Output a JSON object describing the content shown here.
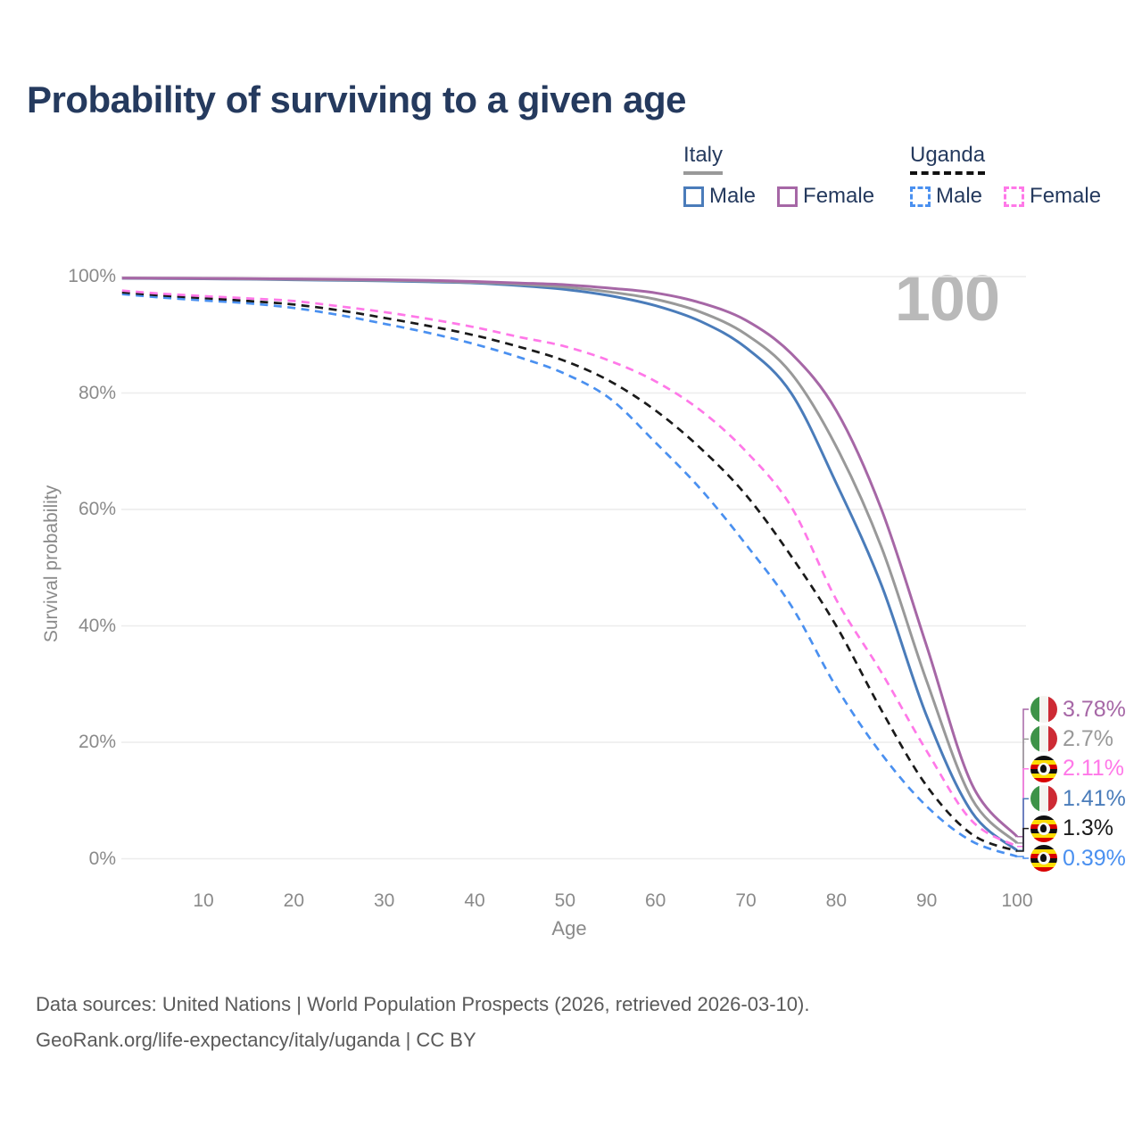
{
  "title": "Probability of surviving to a given age",
  "watermark": "100",
  "legend": {
    "groups": [
      {
        "name": "Italy",
        "line_style": "solid",
        "rule_color": "#999999",
        "items": [
          {
            "label": "Male",
            "color": "#4a7cba"
          },
          {
            "label": "Female",
            "color": "#a667a6"
          }
        ]
      },
      {
        "name": "Uganda",
        "line_style": "dashed",
        "rule_color": "#111111",
        "items": [
          {
            "label": "Male",
            "color": "#4a90f0"
          },
          {
            "label": "Female",
            "color": "#ff78e8"
          }
        ]
      }
    ]
  },
  "chart_data": {
    "type": "line",
    "title": "Probability of surviving to a given age",
    "xlabel": "Age",
    "ylabel": "Survival probability",
    "xlim": [
      1,
      100
    ],
    "ylim": [
      0,
      100
    ],
    "grid": "horizontal-only",
    "legend_position": "top-right",
    "x_ticks": [
      10,
      20,
      30,
      40,
      50,
      60,
      70,
      80,
      90,
      100
    ],
    "x_tick_labels": [
      "10",
      "20",
      "30",
      "40",
      "50",
      "60",
      "70",
      "80",
      "90",
      "100"
    ],
    "y_ticks": [
      0,
      20,
      40,
      60,
      80,
      100
    ],
    "y_tick_labels": [
      "0%",
      "20%",
      "40%",
      "60%",
      "80%",
      "100%"
    ],
    "x": [
      1,
      5,
      10,
      15,
      20,
      25,
      30,
      35,
      40,
      45,
      50,
      55,
      60,
      65,
      70,
      75,
      80,
      85,
      90,
      95,
      100
    ],
    "series": [
      {
        "name": "Italy Male",
        "country": "Italy",
        "sex": "Male",
        "color": "#4a7cba",
        "dashed": false,
        "end_label": "1.41%",
        "end_value": 1.41,
        "flag": "italy",
        "values": [
          99.7,
          99.66,
          99.62,
          99.55,
          99.45,
          99.35,
          99.25,
          99.1,
          98.9,
          98.45,
          97.8,
          96.7,
          95.0,
          92.3,
          87.8,
          80.0,
          64.5,
          47.0,
          24.5,
          8.0,
          1.41
        ]
      },
      {
        "name": "Italy",
        "country": "Italy",
        "sex": "Both",
        "color": "#999999",
        "dashed": false,
        "end_label": "2.7%",
        "end_value": 2.7,
        "flag": "italy",
        "values": [
          99.73,
          99.69,
          99.66,
          99.6,
          99.52,
          99.44,
          99.35,
          99.22,
          99.0,
          98.68,
          98.2,
          97.35,
          96.1,
          93.9,
          90.1,
          83.4,
          70.8,
          53.5,
          30.5,
          10.3,
          2.7
        ]
      },
      {
        "name": "Italy Female",
        "country": "Italy",
        "sex": "Female",
        "color": "#a667a6",
        "dashed": false,
        "end_label": "3.78%",
        "end_value": 3.78,
        "flag": "italy",
        "values": [
          99.76,
          99.73,
          99.7,
          99.65,
          99.6,
          99.54,
          99.46,
          99.34,
          99.15,
          98.9,
          98.6,
          98.0,
          97.2,
          95.5,
          92.5,
          86.8,
          77.0,
          60.0,
          36.5,
          12.8,
          3.78
        ]
      },
      {
        "name": "Uganda Male",
        "country": "Uganda",
        "sex": "Male",
        "color": "#4a90f0",
        "dashed": true,
        "end_label": "0.39%",
        "end_value": 0.39,
        "flag": "uganda",
        "values": [
          97.0,
          96.45,
          95.9,
          95.4,
          94.6,
          93.4,
          91.9,
          90.3,
          88.4,
          86.1,
          83.3,
          79.0,
          71.5,
          63.5,
          54.0,
          43.5,
          29.5,
          18.0,
          9.0,
          3.0,
          0.39
        ]
      },
      {
        "name": "Uganda",
        "country": "Uganda",
        "sex": "Both",
        "color": "#1a1a1a",
        "dashed": true,
        "end_label": "1.3%",
        "end_value": 1.3,
        "flag": "uganda",
        "values": [
          97.3,
          96.8,
          96.3,
          95.8,
          95.2,
          94.2,
          92.9,
          91.5,
          89.9,
          87.9,
          85.5,
          82.0,
          77.0,
          70.5,
          62.5,
          52.0,
          40.0,
          25.5,
          12.5,
          4.2,
          1.3
        ]
      },
      {
        "name": "Uganda Female",
        "country": "Uganda",
        "sex": "Female",
        "color": "#ff78e8",
        "dashed": true,
        "end_label": "2.11%",
        "end_value": 2.11,
        "flag": "uganda",
        "values": [
          97.6,
          97.1,
          96.65,
          96.25,
          95.8,
          94.9,
          93.9,
          92.7,
          91.3,
          89.6,
          88.0,
          85.5,
          82.0,
          77.0,
          70.0,
          60.5,
          44.5,
          32.0,
          18.5,
          6.5,
          2.11
        ]
      }
    ]
  },
  "footer": {
    "line1": "Data sources: United Nations | World Population Prospects (2026, retrieved 2026-03-10).",
    "line2": "GeoRank.org/life-expectancy/italy/uganda | CC BY"
  }
}
